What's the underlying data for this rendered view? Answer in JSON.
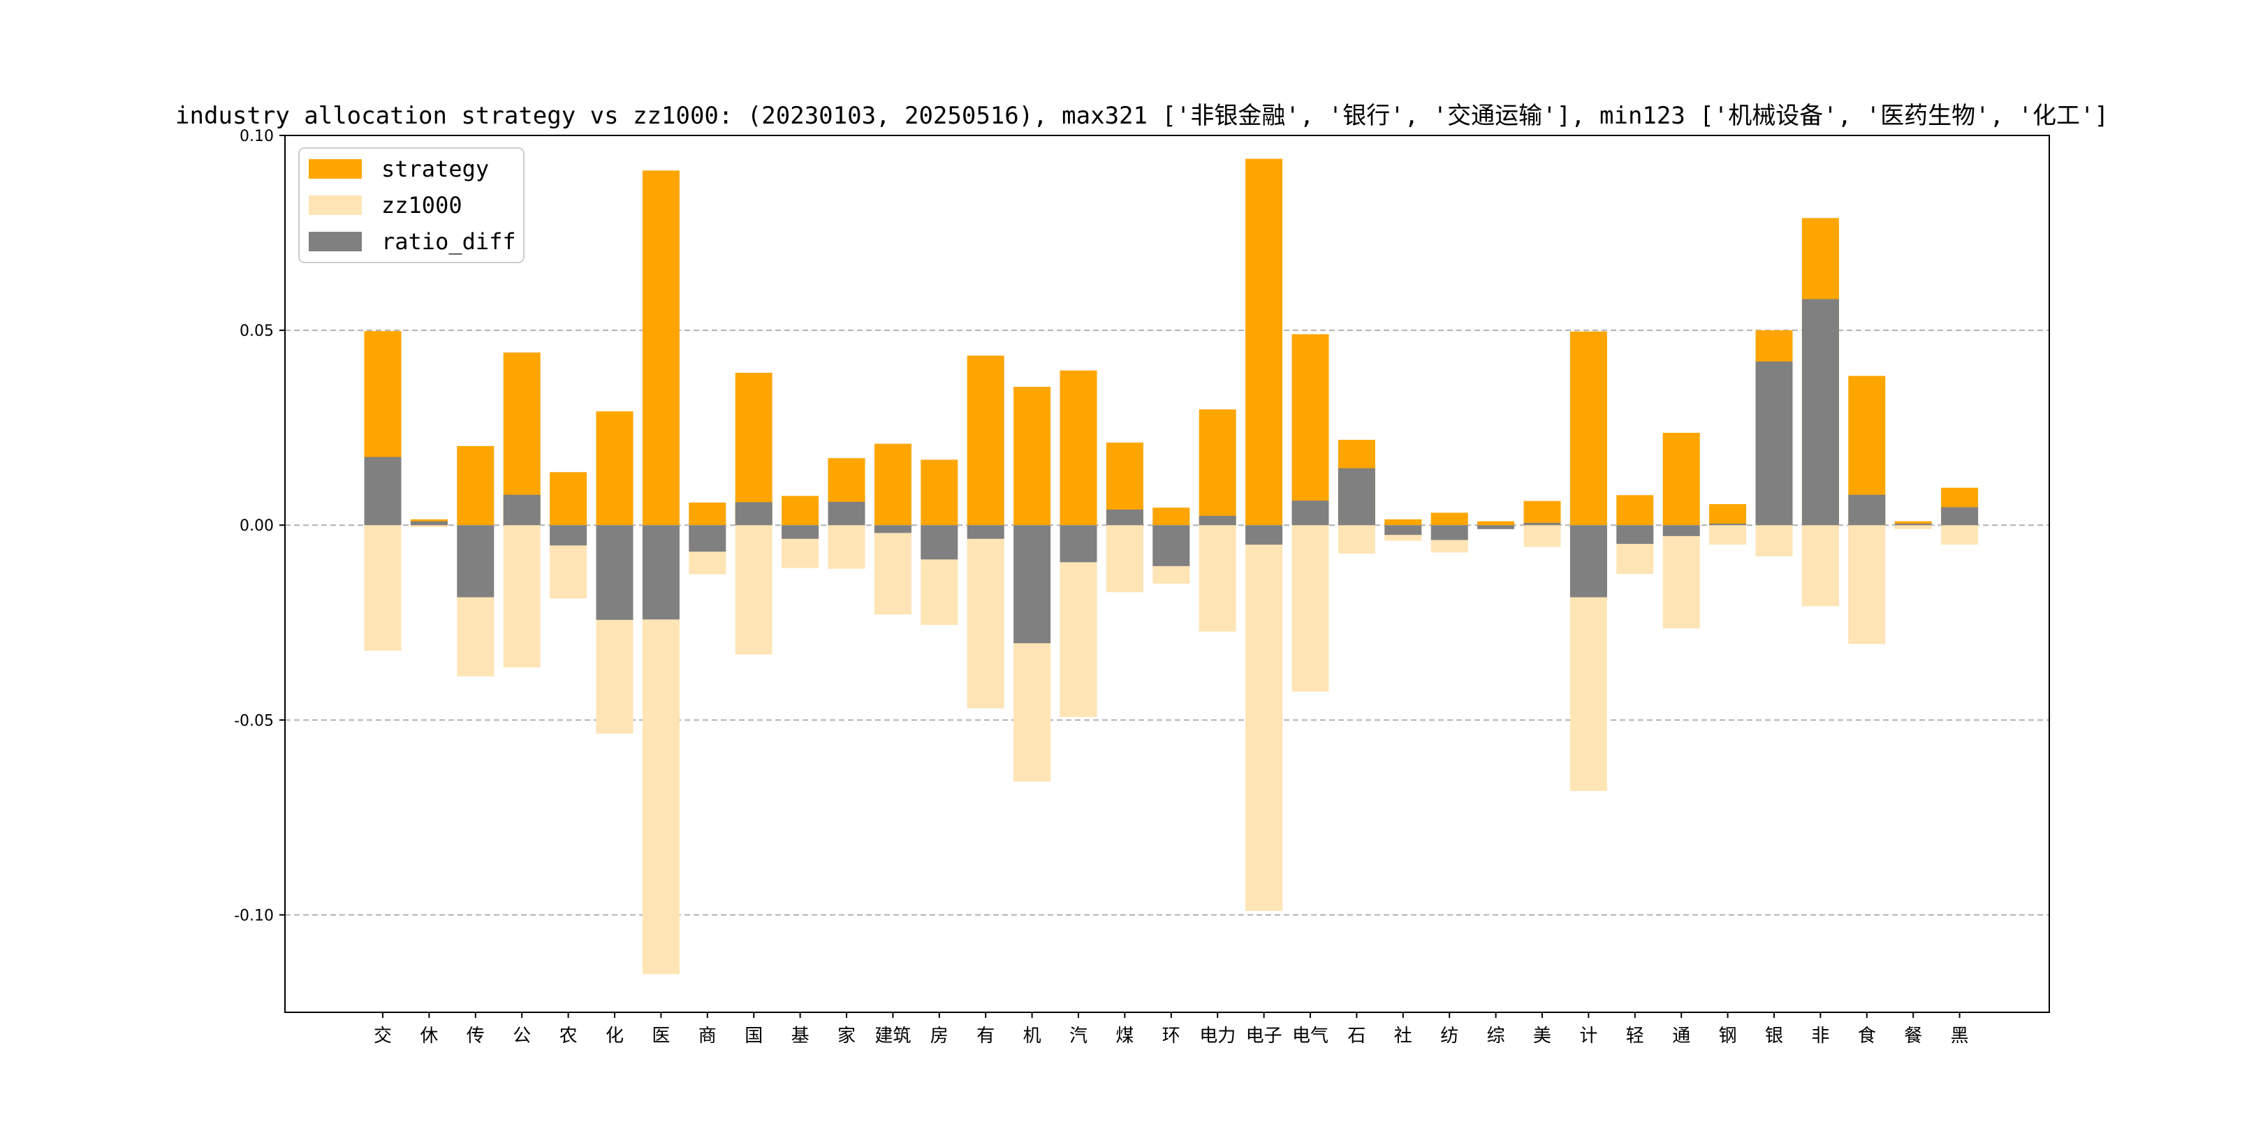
{
  "chart_data": {
    "type": "bar",
    "title": "industry allocation strategy vs zz1000: (20230103, 20250516), max321 ['非银金融', '银行', '交通运输'], min123 ['机械设备', '医药生物', '化工']",
    "xlabel": "",
    "ylabel": "",
    "ylim": [
      -0.125,
      0.1
    ],
    "yticks": [
      -0.1,
      -0.05,
      0.0,
      0.05,
      0.1
    ],
    "ytick_labels": [
      "-0.10",
      "-0.05",
      "0.00",
      "0.05",
      "0.10"
    ],
    "grid": "horizontal dashed",
    "legend_position": "top-left",
    "categories": [
      "交",
      "休",
      "传",
      "公",
      "农",
      "化",
      "医",
      "商",
      "国",
      "基",
      "家",
      "建筑",
      "房",
      "有",
      "机",
      "汽",
      "煤",
      "环",
      "电力",
      "电子",
      "电气",
      "石",
      "社",
      "纺",
      "综",
      "美",
      "计",
      "轻",
      "通",
      "钢",
      "银",
      "非",
      "食",
      "餐",
      "黑"
    ],
    "series": [
      {
        "name": "strategy",
        "color": "#FFA500",
        "values": [
          0.0498,
          0.0015,
          0.0203,
          0.0443,
          0.0136,
          0.0292,
          0.091,
          0.0058,
          0.0391,
          0.0075,
          0.0172,
          0.0209,
          0.0168,
          0.0435,
          0.0355,
          0.0397,
          0.0212,
          0.0045,
          0.0297,
          0.094,
          0.049,
          0.0219,
          0.0015,
          0.0032,
          0.001,
          0.0062,
          0.0497,
          0.0077,
          0.0237,
          0.0054,
          0.05,
          0.0788,
          0.0383,
          0.001,
          0.0096
        ]
      },
      {
        "name": "zz1000",
        "color": "#FFE4B5",
        "values": [
          -0.0322,
          -0.0005,
          -0.0388,
          -0.0365,
          -0.0188,
          -0.0535,
          -0.1152,
          -0.0126,
          -0.0332,
          -0.011,
          -0.0112,
          -0.0229,
          -0.0256,
          -0.047,
          -0.0658,
          -0.0492,
          -0.0172,
          -0.015,
          -0.0273,
          -0.099,
          -0.0427,
          -0.0073,
          -0.004,
          -0.007,
          -0.001,
          -0.0056,
          -0.0682,
          -0.0125,
          -0.0265,
          -0.005,
          -0.008,
          -0.0208,
          -0.0305,
          -0.001,
          -0.005
        ]
      },
      {
        "name": "ratio_diff",
        "color": "#808080",
        "values": [
          0.0175,
          0.001,
          -0.0185,
          0.0078,
          -0.0052,
          -0.0243,
          -0.0242,
          -0.0068,
          0.0059,
          -0.0035,
          0.006,
          -0.002,
          -0.0088,
          -0.0035,
          -0.0303,
          -0.0095,
          0.004,
          -0.0105,
          0.0024,
          -0.005,
          0.0063,
          0.0146,
          -0.0025,
          -0.0038,
          -0.001,
          0.0006,
          -0.0185,
          -0.0048,
          -0.0028,
          0.0004,
          0.042,
          0.058,
          0.0078,
          0.0004,
          0.0046
        ]
      }
    ]
  }
}
